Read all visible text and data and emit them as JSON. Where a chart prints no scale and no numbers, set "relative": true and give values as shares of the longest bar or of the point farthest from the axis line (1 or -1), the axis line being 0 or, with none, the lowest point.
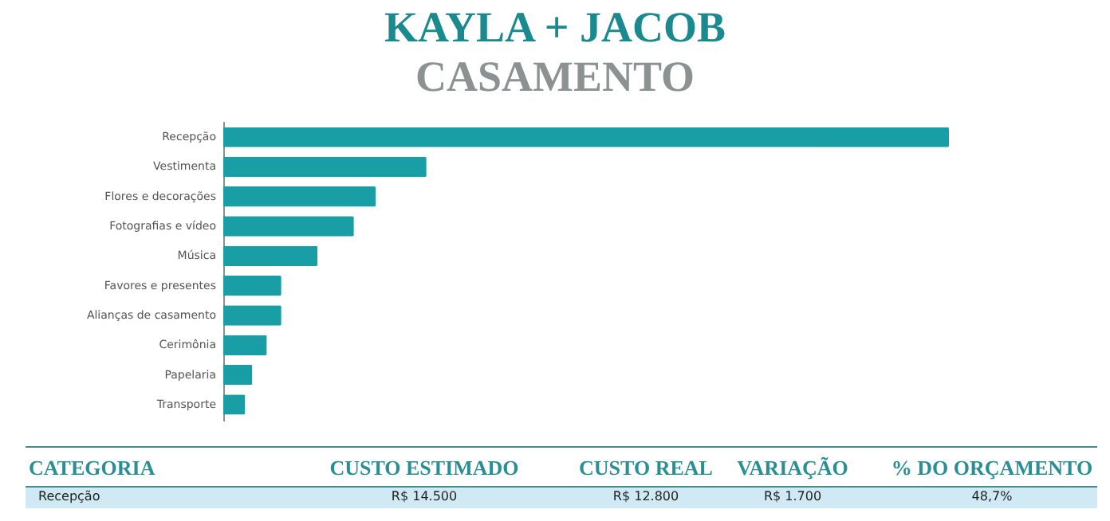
{
  "chart_data": {
    "type": "bar",
    "orientation": "horizontal",
    "relative": true,
    "title": "KAYLA + JACOB",
    "subtitle": "CASAMENTO",
    "categories": [
      "Recepção",
      "Vestimenta",
      "Flores e decorações",
      "Fotografias e vídeo",
      "Música",
      "Favores e presentes",
      "Alianças de casamento",
      "Cerimônia",
      "Papelaria",
      "Transporte"
    ],
    "values": [
      1,
      0.28,
      0.21,
      0.18,
      0.13,
      0.08,
      0.08,
      0.06,
      0.04,
      0.03
    ],
    "color": "#1a9ea5",
    "annotations": [
      "CATEGORIA",
      "CUSTO ESTIMADO",
      "CUSTO REAL",
      "VARIAÇÃO",
      "% DO ORÇAMENTO",
      "Recepção",
      "R$ 14.500",
      "R$ 12.800",
      "R$ 1.700",
      "48,7%"
    ]
  }
}
